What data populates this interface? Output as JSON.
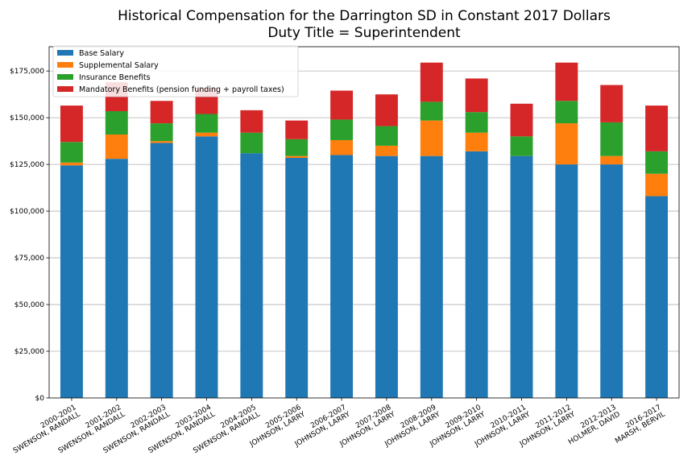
{
  "chart_data": {
    "type": "bar",
    "stacked": true,
    "title": "Historical Compensation for the Darrington SD in Constant 2017 Dollars",
    "subtitle": "Duty Title = Superintendent",
    "xlabel": "",
    "ylabel": "",
    "ylim": [
      0,
      188000
    ],
    "yticks": [
      0,
      25000,
      50000,
      75000,
      100000,
      125000,
      150000,
      175000
    ],
    "ytick_labels": [
      "$0",
      "$25,000",
      "$50,000",
      "$75,000",
      "$100,000",
      "$125,000",
      "$150,000",
      "$175,000"
    ],
    "grid": "horizontal",
    "legend_position": "top-left",
    "categories": [
      [
        "2000-2001",
        "SWENSON, RANDALL"
      ],
      [
        "2001-2002",
        "SWENSON, RANDALL"
      ],
      [
        "2002-2003",
        "SWENSON, RANDALL"
      ],
      [
        "2003-2004",
        "SWENSON, RANDALL"
      ],
      [
        "2004-2005",
        "SWENSON, RANDALL"
      ],
      [
        "2005-2006",
        "JOHNSON, LARRY"
      ],
      [
        "2006-2007",
        "JOHNSON, LARRY"
      ],
      [
        "2007-2008",
        "JOHNSON, LARRY"
      ],
      [
        "2008-2009",
        "JOHNSON, LARRY"
      ],
      [
        "2009-2010",
        "JOHNSON, LARRY"
      ],
      [
        "2010-2011",
        "JOHNSON, LARRY"
      ],
      [
        "2011-2012",
        "JOHNSON, LARRY"
      ],
      [
        "2012-2013",
        "HOLMER, DAVID"
      ],
      [
        "2016-2017",
        "MARSH, BERVIL"
      ]
    ],
    "series": [
      {
        "name": "Base Salary",
        "color": "#1f77b4",
        "values": [
          124500,
          128000,
          136500,
          140000,
          131000,
          128500,
          130000,
          129500,
          129500,
          132000,
          129500,
          125000,
          125000,
          108000
        ]
      },
      {
        "name": "Supplemental Salary",
        "color": "#ff7f0e",
        "values": [
          1500,
          13000,
          1000,
          2000,
          0,
          1000,
          8000,
          5500,
          19000,
          10000,
          0,
          22000,
          4500,
          12000
        ]
      },
      {
        "name": "Insurance Benefits",
        "color": "#2ca02c",
        "values": [
          11000,
          12500,
          9500,
          10000,
          11000,
          9000,
          11000,
          10500,
          10000,
          11000,
          10500,
          12000,
          18000,
          12000
        ]
      },
      {
        "name": "Mandatory Benefits (pension funding + payroll taxes)",
        "color": "#d62728",
        "values": [
          19500,
          15500,
          12000,
          14000,
          12000,
          10000,
          15500,
          17000,
          21000,
          18000,
          17500,
          20500,
          20000,
          24500
        ]
      }
    ]
  }
}
